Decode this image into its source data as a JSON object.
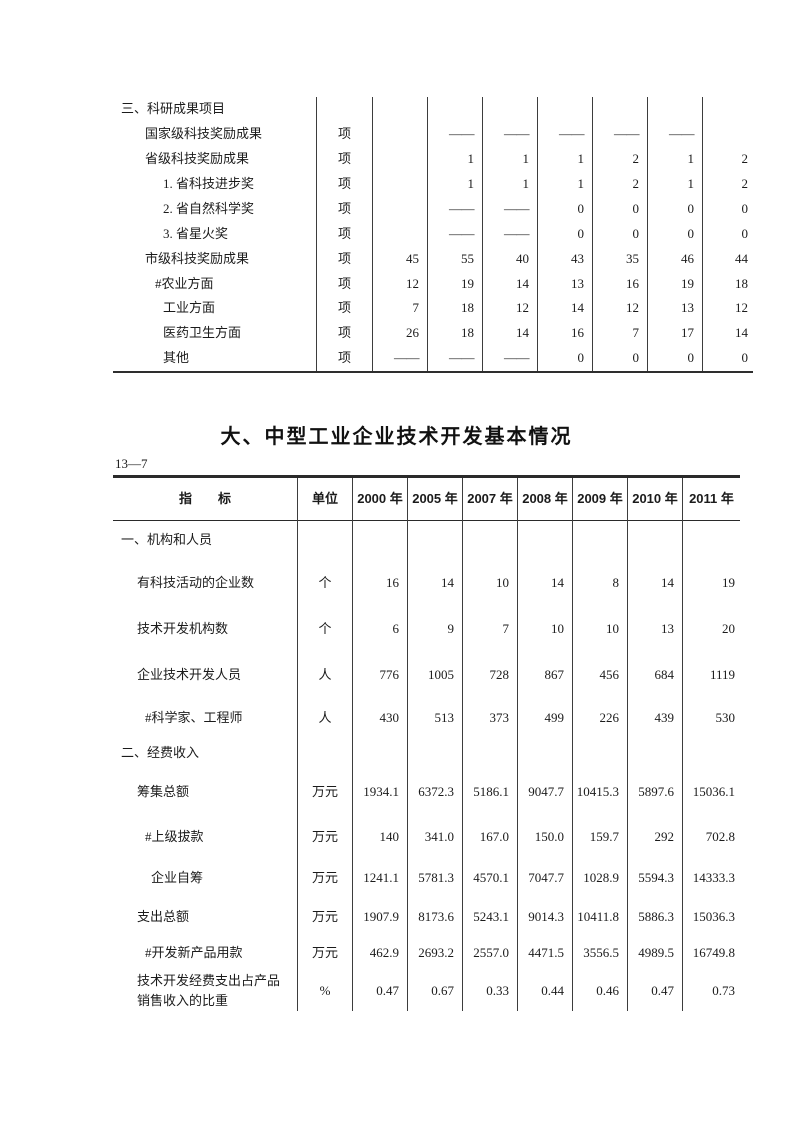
{
  "page": {
    "background": "#ffffff",
    "text_color": "#1b1b1b",
    "line_color": "#3d3d3d"
  },
  "table_top": {
    "rows": [
      {
        "label": "三、科研成果项目",
        "indent": 0,
        "unit": "",
        "values": [
          "",
          "",
          "",
          "",
          "",
          "",
          ""
        ]
      },
      {
        "label": "国家级科技奖励成果",
        "indent": 1,
        "unit": "项",
        "values": [
          "",
          "——",
          "——",
          "——",
          "——",
          "——",
          ""
        ]
      },
      {
        "label": "省级科技奖励成果",
        "indent": 1,
        "unit": "项",
        "values": [
          "",
          "1",
          "1",
          "1",
          "2",
          "1",
          "2"
        ]
      },
      {
        "label": "1. 省科技进步奖",
        "indent": 2,
        "unit": "项",
        "values": [
          "",
          "1",
          "1",
          "1",
          "2",
          "1",
          "2"
        ]
      },
      {
        "label": "2. 省自然科学奖",
        "indent": 2,
        "unit": "项",
        "values": [
          "",
          "——",
          "——",
          "0",
          "0",
          "0",
          "0"
        ]
      },
      {
        "label": "3. 省星火奖",
        "indent": 2,
        "unit": "项",
        "values": [
          "",
          "——",
          "——",
          "0",
          "0",
          "0",
          "0"
        ]
      },
      {
        "label": "市级科技奖励成果",
        "indent": 1,
        "unit": "项",
        "values": [
          "45",
          "55",
          "40",
          "43",
          "35",
          "46",
          "44"
        ]
      },
      {
        "label": "#农业方面",
        "indent": 3,
        "unit": "项",
        "values": [
          "12",
          "19",
          "14",
          "13",
          "16",
          "19",
          "18"
        ]
      },
      {
        "label": "工业方面",
        "indent": 2,
        "unit": "项",
        "values": [
          "7",
          "18",
          "12",
          "14",
          "12",
          "13",
          "12"
        ]
      },
      {
        "label": "医药卫生方面",
        "indent": 2,
        "unit": "项",
        "values": [
          "26",
          "18",
          "14",
          "16",
          "7",
          "17",
          "14"
        ]
      },
      {
        "label": "其他",
        "indent": 2,
        "unit": "项",
        "values": [
          "——",
          "——",
          "——",
          "0",
          "0",
          "0",
          "0"
        ]
      }
    ]
  },
  "main_table": {
    "title": "大、中型工业企业技术开发基本情况",
    "table_no": "13—7",
    "headers": {
      "indicator": "指　　标",
      "unit": "单位",
      "years": [
        "2000 年",
        "2005 年",
        "2007 年",
        "2008 年",
        "2009 年",
        "2010 年",
        "2011 年"
      ]
    },
    "rows": [
      {
        "label": "一、机构和人员",
        "indent": 0,
        "unit": "",
        "values": [
          "",
          "",
          "",
          "",
          "",
          "",
          ""
        ]
      },
      {
        "label": "有科技活动的企业数",
        "indent": 1,
        "unit": "个",
        "values": [
          "16",
          "14",
          "10",
          "14",
          "8",
          "14",
          "19"
        ]
      },
      {
        "label": "技术开发机构数",
        "indent": 1,
        "unit": "个",
        "values": [
          "6",
          "9",
          "7",
          "10",
          "10",
          "13",
          "20"
        ]
      },
      {
        "label": "企业技术开发人员",
        "indent": 1,
        "unit": "人",
        "values": [
          "776",
          "1005",
          "728",
          "867",
          "456",
          "684",
          "1119"
        ]
      },
      {
        "label": "#科学家、工程师",
        "indent": 2,
        "unit": "人",
        "values": [
          "430",
          "513",
          "373",
          "499",
          "226",
          "439",
          "530"
        ]
      },
      {
        "label": "二、经费收入",
        "indent": 0,
        "unit": "",
        "values": [
          "",
          "",
          "",
          "",
          "",
          "",
          ""
        ]
      },
      {
        "label": "筹集总额",
        "indent": 1,
        "unit": "万元",
        "values": [
          "1934.1",
          "6372.3",
          "5186.1",
          "9047.7",
          "10415.3",
          "5897.6",
          "15036.1"
        ]
      },
      {
        "label": "#上级拔款",
        "indent": 2,
        "unit": "万元",
        "values": [
          "140",
          "341.0",
          "167.0",
          "150.0",
          "159.7",
          "292",
          "702.8"
        ]
      },
      {
        "label": "企业自筹",
        "indent": 3,
        "unit": "万元",
        "values": [
          "1241.1",
          "5781.3",
          "4570.1",
          "7047.7",
          "1028.9",
          "5594.3",
          "14333.3"
        ]
      },
      {
        "label": "支出总额",
        "indent": 1,
        "unit": "万元",
        "values": [
          "1907.9",
          "8173.6",
          "5243.1",
          "9014.3",
          "10411.8",
          "5886.3",
          "15036.3"
        ]
      },
      {
        "label": "#开发新产品用款",
        "indent": 2,
        "unit": "万元",
        "values": [
          "462.9",
          "2693.2",
          "2557.0",
          "4471.5",
          "3556.5",
          "4989.5",
          "16749.8"
        ]
      },
      {
        "label": "技术开发经费支出占产品",
        "label2": "销售收入的比重",
        "indent": 1,
        "unit": "%",
        "values": [
          "0.47",
          "0.67",
          "0.33",
          "0.44",
          "0.46",
          "0.47",
          "0.73"
        ]
      }
    ]
  }
}
